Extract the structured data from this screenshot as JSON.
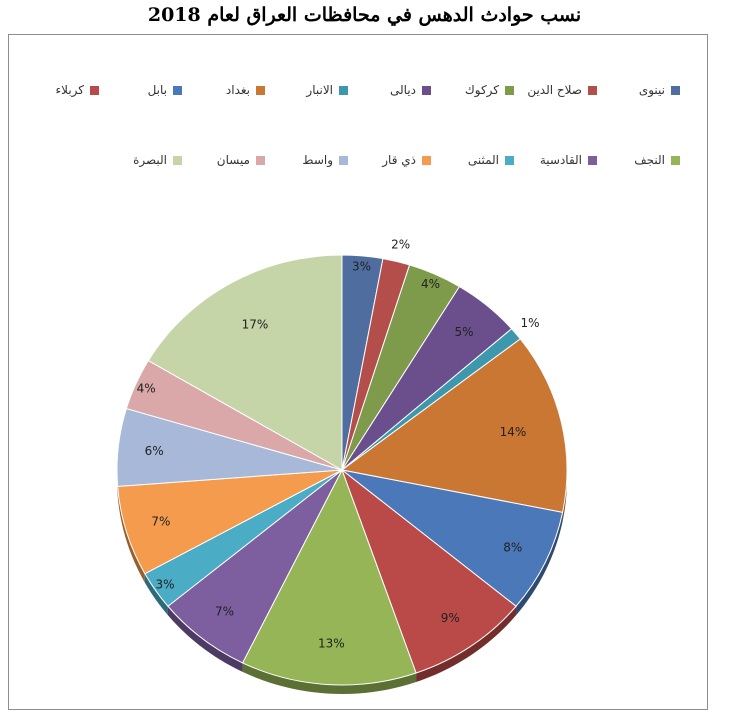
{
  "title": "نسب حوادث الدهس في محافظات العراق لعام 2018",
  "chart_data": {
    "type": "pie",
    "title": "نسب حوادث الدهس في محافظات العراق لعام 2018",
    "legend_position": "top",
    "slices": [
      {
        "label": "نينوى",
        "value": 3,
        "display": "3%",
        "color": "#4F6E9F"
      },
      {
        "label": "صلاح الدين",
        "value": 2,
        "display": "2%",
        "color": "#B44E4B"
      },
      {
        "label": "كركوك",
        "value": 4,
        "display": "4%",
        "color": "#7E9A4B"
      },
      {
        "label": "ديالى",
        "value": 5,
        "display": "5%",
        "color": "#6B4F8C"
      },
      {
        "label": "الانبار",
        "value": 1,
        "display": "1%",
        "color": "#3D97AD"
      },
      {
        "label": "بغداد",
        "value": 14,
        "display": "14%",
        "color": "#CA7733"
      },
      {
        "label": "بابل",
        "value": 8,
        "display": "8%",
        "color": "#4B78B8"
      },
      {
        "label": "كربلاء",
        "value": 9,
        "display": "9%",
        "color": "#BA4A47"
      },
      {
        "label": "النجف",
        "value": 13,
        "display": "13%",
        "color": "#95B556"
      },
      {
        "label": "القادسية",
        "value": 7,
        "display": "7%",
        "color": "#7D5F9F"
      },
      {
        "label": "المثنى",
        "value": 3,
        "display": "3%",
        "color": "#4AACC5"
      },
      {
        "label": "ذي قار",
        "value": 7,
        "display": "7%",
        "color": "#F59B4D"
      },
      {
        "label": "واسط",
        "value": 6,
        "display": "6%",
        "color": "#A7B8D9"
      },
      {
        "label": "ميسان",
        "value": 4,
        "display": "4%",
        "color": "#DAA8A8"
      },
      {
        "label": "البصرة",
        "value": 17,
        "display": "17%",
        "color": "#C6D5A7"
      }
    ]
  }
}
